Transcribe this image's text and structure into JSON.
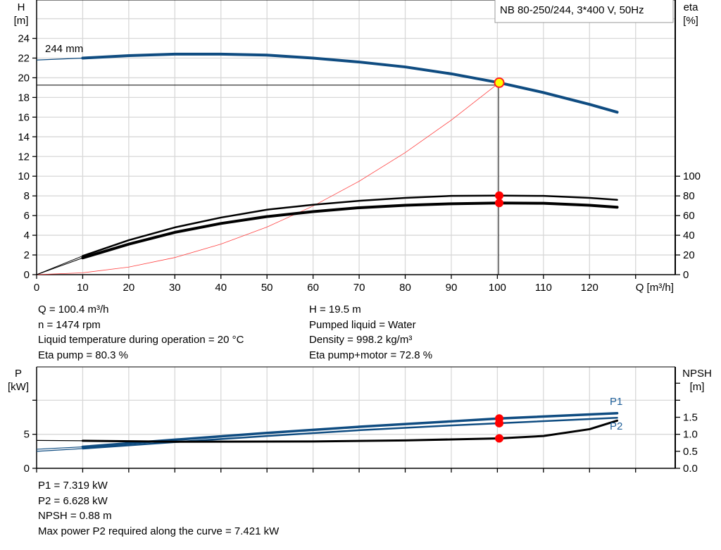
{
  "chart_data": [
    {
      "type": "line",
      "title": "NB 80-250/244, 3*400 V, 50Hz",
      "xlabel": "Q [m³/h]",
      "ylabel": "H\n[m]",
      "ylabel_right": "eta\n[%]",
      "xlim": [
        0,
        138.6
      ],
      "ylim": [
        0,
        27.9
      ],
      "ylim_right": [
        0,
        279
      ],
      "x_ticks": [
        0,
        10,
        20,
        30,
        40,
        50,
        60,
        70,
        80,
        90,
        100,
        110,
        120
      ],
      "y_ticks": [
        0,
        2,
        4,
        6,
        8,
        10,
        12,
        14,
        16,
        18,
        20,
        22,
        24
      ],
      "y_right_ticks": [
        0,
        20,
        40,
        60,
        80,
        100
      ],
      "grid": true,
      "annotation": "244 mm",
      "series": [
        {
          "id": "head",
          "axis": "left",
          "color": "#0f4c81",
          "x": [
            0,
            10,
            20,
            30,
            40,
            50,
            60,
            70,
            80,
            90,
            100.4,
            110,
            120,
            126
          ],
          "y": [
            21.8,
            22.0,
            22.25,
            22.4,
            22.4,
            22.3,
            22.0,
            21.6,
            21.1,
            20.4,
            19.5,
            18.5,
            17.3,
            16.5
          ]
        },
        {
          "id": "eta-pump",
          "axis": "right",
          "color": "#000000",
          "x": [
            0,
            10,
            20,
            30,
            40,
            50,
            60,
            70,
            80,
            90,
            100.4,
            110,
            120,
            126
          ],
          "y": [
            0,
            19,
            35,
            48,
            58,
            66,
            71,
            75,
            78,
            80,
            80.3,
            80,
            78,
            76
          ]
        },
        {
          "id": "eta-pump-motor",
          "axis": "right",
          "color": "#000000",
          "x": [
            0,
            10,
            20,
            30,
            40,
            50,
            60,
            70,
            80,
            90,
            100.4,
            110,
            120,
            126
          ],
          "y": [
            0,
            17,
            31,
            43,
            52,
            59,
            64,
            68,
            70.5,
            72,
            72.8,
            72.5,
            70.5,
            68.5
          ]
        },
        {
          "id": "system-curve",
          "axis": "left",
          "color": "#ff4040",
          "x": [
            0,
            10,
            20,
            30,
            40,
            50,
            60,
            70,
            80,
            90,
            100.4
          ],
          "y": [
            0,
            0.19,
            0.77,
            1.74,
            3.1,
            4.84,
            6.97,
            9.49,
            12.4,
            15.7,
            19.5
          ]
        }
      ],
      "duty_point": {
        "Q": 100.4,
        "H": 19.5,
        "eta_pump": 80.3,
        "eta_pump_motor": 72.8
      }
    },
    {
      "type": "line",
      "ylabel": "P\n[kW]",
      "ylabel_right": "NPSH\n[m]",
      "xlim": [
        0,
        138.6
      ],
      "ylim": [
        0,
        14.9
      ],
      "ylim_right": [
        0,
        2.98
      ],
      "y_ticks": [
        0,
        5,
        10
      ],
      "y_tick_labels": [
        "0",
        "5",
        ""
      ],
      "y_right_ticks": [
        0,
        0.5,
        1.0,
        1.5,
        2.0,
        2.5
      ],
      "y_right_tick_labels": [
        "0.0",
        "0.5",
        "1.0",
        "1.5",
        "",
        ""
      ],
      "grid": true,
      "series": [
        {
          "id": "P1",
          "name": "P1",
          "axis": "left",
          "color": "#0f4c81",
          "x": [
            0,
            10,
            30,
            50,
            70,
            90,
            100.4,
            126
          ],
          "y": [
            2.8,
            3.15,
            4.2,
            5.2,
            6.1,
            6.9,
            7.319,
            8.1
          ]
        },
        {
          "id": "P2",
          "name": "P2",
          "axis": "left",
          "color": "#0f4c81",
          "x": [
            0,
            10,
            30,
            50,
            70,
            90,
            100.4,
            126
          ],
          "y": [
            2.5,
            2.9,
            3.85,
            4.75,
            5.6,
            6.3,
            6.628,
            7.42
          ]
        },
        {
          "id": "NPSH",
          "axis": "right",
          "color": "#000000",
          "x": [
            0,
            10,
            30,
            60,
            80,
            100.4,
            110,
            120,
            126
          ],
          "y": [
            0.82,
            0.81,
            0.78,
            0.79,
            0.82,
            0.88,
            0.95,
            1.15,
            1.4
          ]
        }
      ],
      "duty_point": {
        "Q": 100.4,
        "P1": 7.319,
        "P2": 6.628,
        "NPSH": 0.88
      }
    }
  ],
  "info_top": {
    "left": [
      "Q = 100.4 m³/h",
      "n = 1474 rpm",
      "Liquid temperature during operation = 20 °C",
      "Eta pump = 80.3 %"
    ],
    "right": [
      "H = 19.5 m",
      "Pumped liquid = Water",
      "Density = 998.2 kg/m³",
      "Eta pump+motor = 72.8 %"
    ]
  },
  "info_bottom": [
    "P1 = 7.319 kW",
    "P2 = 6.628 kW",
    "NPSH = 0.88 m",
    "Max power P2 required along the curve = 7.421 kW"
  ]
}
